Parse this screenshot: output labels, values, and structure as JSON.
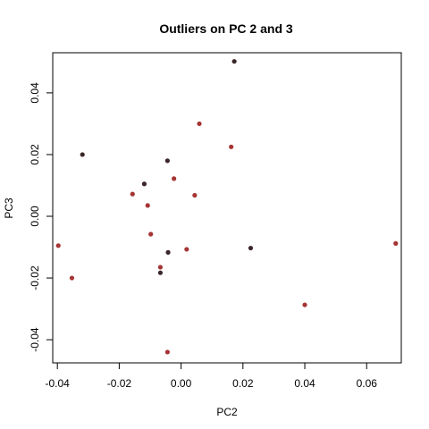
{
  "chart_data": {
    "type": "scatter",
    "title": "Outliers on PC 2 and 3",
    "xlabel": "PC2",
    "ylabel": "PC3",
    "xlim": [
      -0.0415,
      0.0712
    ],
    "ylim": [
      -0.0475,
      0.053
    ],
    "xticks": [
      -0.04,
      -0.02,
      0.0,
      0.02,
      0.04,
      0.06
    ],
    "xtick_labels": [
      "-0.04",
      "-0.02",
      "0.00",
      "0.02",
      "0.04",
      "0.06"
    ],
    "yticks": [
      -0.04,
      -0.02,
      0.0,
      0.02,
      0.04
    ],
    "ytick_labels": [
      "-0.04",
      "-0.02",
      "0.00",
      "0.02",
      "0.04"
    ],
    "grid": false,
    "colors": {
      "dark": "#3a2628",
      "red": "#a63434"
    },
    "points": [
      {
        "x": 0.0172,
        "y": 0.0502,
        "color": "dark"
      },
      {
        "x": 0.0059,
        "y": 0.03,
        "color": "red"
      },
      {
        "x": 0.0162,
        "y": 0.0225,
        "color": "red"
      },
      {
        "x": -0.0319,
        "y": 0.02,
        "color": "dark"
      },
      {
        "x": -0.0044,
        "y": 0.018,
        "color": "dark"
      },
      {
        "x": -0.0023,
        "y": 0.0122,
        "color": "red"
      },
      {
        "x": -0.0119,
        "y": 0.0105,
        "color": "dark"
      },
      {
        "x": -0.0157,
        "y": 0.0072,
        "color": "red"
      },
      {
        "x": 0.0044,
        "y": 0.0068,
        "color": "red"
      },
      {
        "x": -0.0108,
        "y": 0.0035,
        "color": "red"
      },
      {
        "x": -0.0098,
        "y": -0.0058,
        "color": "red"
      },
      {
        "x": -0.0397,
        "y": -0.0095,
        "color": "red"
      },
      {
        "x": 0.0694,
        "y": -0.0088,
        "color": "red"
      },
      {
        "x": 0.0018,
        "y": -0.0107,
        "color": "red"
      },
      {
        "x": 0.0225,
        "y": -0.0103,
        "color": "dark"
      },
      {
        "x": -0.0042,
        "y": -0.0117,
        "color": "dark"
      },
      {
        "x": -0.0067,
        "y": -0.0165,
        "color": "red"
      },
      {
        "x": -0.0067,
        "y": -0.0183,
        "color": "dark"
      },
      {
        "x": -0.0353,
        "y": -0.02,
        "color": "red"
      },
      {
        "x": 0.04,
        "y": -0.0287,
        "color": "red"
      },
      {
        "x": -0.0044,
        "y": -0.044,
        "color": "red"
      }
    ]
  }
}
